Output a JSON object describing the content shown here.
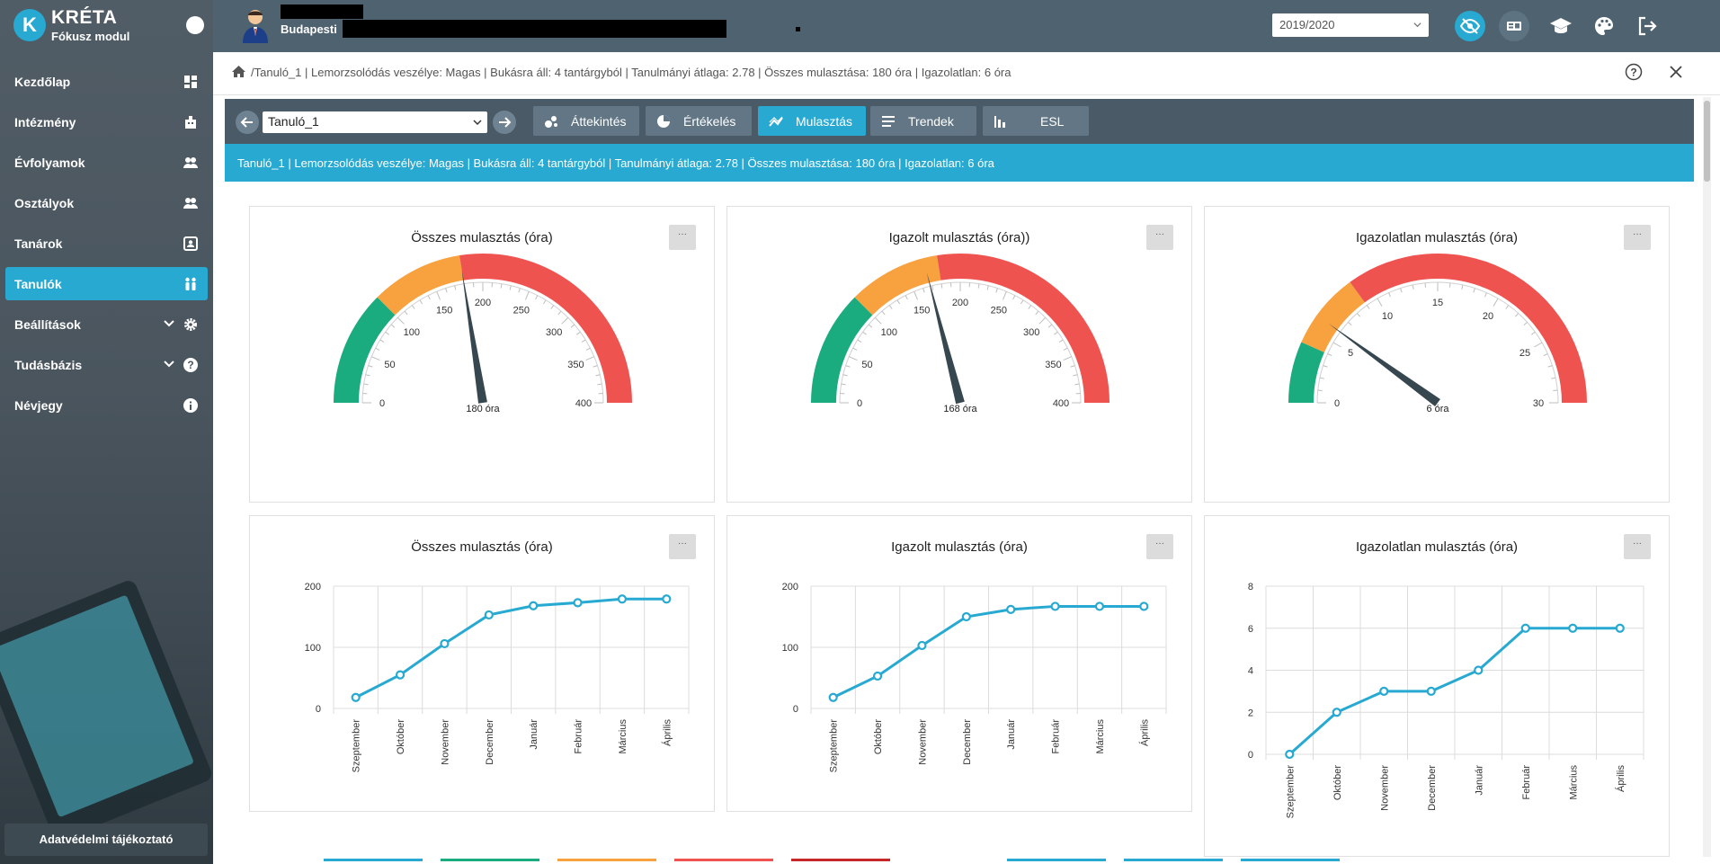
{
  "brand": {
    "title": "KRÉTA",
    "subtitle": "Fókusz modul",
    "logo_letter": "K"
  },
  "sidebar": {
    "items": [
      {
        "label": "Kezdőlap",
        "icon": "dashboard-icon",
        "active": false
      },
      {
        "label": "Intézmény",
        "icon": "building-icon",
        "active": false
      },
      {
        "label": "Évfolyamok",
        "icon": "group-icon",
        "active": false
      },
      {
        "label": "Osztályok",
        "icon": "group-icon",
        "active": false
      },
      {
        "label": "Tanárok",
        "icon": "teacher-card-icon",
        "active": false
      },
      {
        "label": "Tanulók",
        "icon": "students-icon",
        "active": true
      },
      {
        "label": "Beállítások",
        "icon": "gear-icon",
        "active": false,
        "expandable": true
      },
      {
        "label": "Tudásbázis",
        "icon": "help-icon",
        "active": false,
        "expandable": true
      },
      {
        "label": "Névjegy",
        "icon": "info-icon",
        "active": false
      }
    ],
    "privacy_label": "Adatvédelmi tájékoztató"
  },
  "topbar": {
    "school_prefix": "Budapesti",
    "year": "2019/2020",
    "icons": [
      "visibility-off-icon",
      "id-card-icon",
      "graduation-cap-icon",
      "palette-icon",
      "logout-icon"
    ]
  },
  "breadcrumb": {
    "text": "/Tanuló_1 | Lemorzsolódás veszélye: Magas | Bukásra áll: 4 tantárgyból | Tanulmányi átlaga: 2.78 | Összes mulasztása: 180 óra | Igazolatlan: 6 óra"
  },
  "toolbar": {
    "student": "Tanuló_1",
    "tabs": [
      {
        "label": "Áttekintés",
        "icon": "bubbles-icon",
        "active": false
      },
      {
        "label": "Értékelés",
        "icon": "pie-icon",
        "active": false
      },
      {
        "label": "Mulasztás",
        "icon": "trend-icon",
        "active": true
      },
      {
        "label": "Trendek",
        "icon": "lines-icon",
        "active": false
      },
      {
        "label": "ESL",
        "icon": "bar-chart-icon",
        "active": false
      }
    ]
  },
  "info": {
    "text": "Tanuló_1 | Lemorzsolódás veszélye: Magas | Bukásra áll: 4 tantárgyból | Tanulmányi átlaga: 2.78 | Összes mulasztása: 180 óra | Igazolatlan: 6 óra"
  },
  "gauges": [
    {
      "title": "Összes mulasztás (óra)",
      "value": 180,
      "value_label": "180 óra",
      "min": 0,
      "max": 400,
      "ticks": [
        0,
        50,
        100,
        150,
        200,
        250,
        300,
        350,
        400
      ],
      "bands": [
        {
          "from": 0,
          "to": 100,
          "color": "#1aab7f"
        },
        {
          "from": 100,
          "to": 180,
          "color": "#f7a13f"
        },
        {
          "from": 180,
          "to": 400,
          "color": "#ef5350"
        }
      ]
    },
    {
      "title": "Igazolt mulasztás (óra))",
      "value": 168,
      "value_label": "168 óra",
      "min": 0,
      "max": 400,
      "ticks": [
        0,
        50,
        100,
        150,
        200,
        250,
        300,
        350,
        400
      ],
      "bands": [
        {
          "from": 0,
          "to": 100,
          "color": "#1aab7f"
        },
        {
          "from": 100,
          "to": 180,
          "color": "#f7a13f"
        },
        {
          "from": 180,
          "to": 400,
          "color": "#ef5350"
        }
      ]
    },
    {
      "title": "Igazolatlan mulasztás (óra)",
      "value": 6,
      "value_label": "6 óra",
      "min": 0,
      "max": 30,
      "ticks": [
        0,
        5,
        10,
        15,
        20,
        25,
        30
      ],
      "bands": [
        {
          "from": 0,
          "to": 4,
          "color": "#1aab7f"
        },
        {
          "from": 4,
          "to": 9,
          "color": "#f7a13f"
        },
        {
          "from": 9,
          "to": 30,
          "color": "#ef5350"
        }
      ]
    }
  ],
  "chart_data": [
    {
      "type": "line",
      "title": "Összes mulasztás (óra)",
      "categories": [
        "Szeptember",
        "Október",
        "November",
        "December",
        "Január",
        "Február",
        "Március",
        "Április"
      ],
      "values": [
        18,
        55,
        106,
        153,
        168,
        173,
        179,
        179
      ],
      "ylim": [
        0,
        200
      ],
      "yticks": [
        0,
        100,
        200
      ],
      "grid": true
    },
    {
      "type": "line",
      "title": "Igazolt mulasztás (óra)",
      "categories": [
        "Szeptember",
        "Október",
        "November",
        "December",
        "Január",
        "Február",
        "Március",
        "Április"
      ],
      "values": [
        18,
        53,
        103,
        150,
        162,
        167,
        167,
        167
      ],
      "ylim": [
        0,
        200
      ],
      "yticks": [
        0,
        100,
        200
      ],
      "grid": true
    },
    {
      "type": "line",
      "title": "Igazolatlan mulasztás (óra)",
      "categories": [
        "Szeptember",
        "Október",
        "November",
        "December",
        "Január",
        "Február",
        "Március",
        "Április"
      ],
      "values": [
        0,
        2,
        3,
        3,
        4,
        6,
        6,
        6
      ],
      "ylim": [
        0,
        8
      ],
      "yticks": [
        0,
        2,
        4,
        6,
        8
      ],
      "grid": true
    }
  ],
  "colors": {
    "accent": "#27a9d1",
    "line": "#27a9d1",
    "needle": "#37474f"
  }
}
